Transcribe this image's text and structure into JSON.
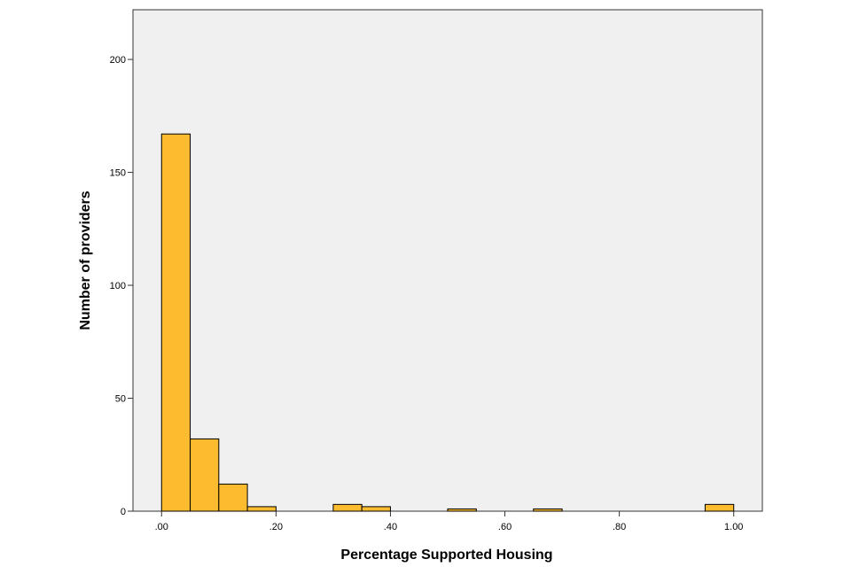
{
  "chart_data": {
    "type": "bar",
    "subtype": "histogram",
    "xlabel": "Percentage Supported Housing",
    "ylabel": "Number of providers",
    "xlim": [
      -0.05,
      1.05
    ],
    "ylim": [
      0,
      222
    ],
    "x_ticks": [
      {
        "value": 0.0,
        "label": ".00"
      },
      {
        "value": 0.2,
        "label": ".20"
      },
      {
        "value": 0.4,
        "label": ".40"
      },
      {
        "value": 0.6,
        "label": ".60"
      },
      {
        "value": 0.8,
        "label": ".80"
      },
      {
        "value": 1.0,
        "label": "1.00"
      }
    ],
    "y_ticks": [
      {
        "value": 0,
        "label": "0"
      },
      {
        "value": 50,
        "label": "50"
      },
      {
        "value": 100,
        "label": "100"
      },
      {
        "value": 150,
        "label": "150"
      },
      {
        "value": 200,
        "label": "200"
      }
    ],
    "bins": [
      {
        "start": 0.0,
        "end": 0.05,
        "count": 167
      },
      {
        "start": 0.05,
        "end": 0.1,
        "count": 32
      },
      {
        "start": 0.1,
        "end": 0.15,
        "count": 12
      },
      {
        "start": 0.15,
        "end": 0.2,
        "count": 2
      },
      {
        "start": 0.3,
        "end": 0.35,
        "count": 3
      },
      {
        "start": 0.35,
        "end": 0.4,
        "count": 2
      },
      {
        "start": 0.5,
        "end": 0.55,
        "count": 1
      },
      {
        "start": 0.65,
        "end": 0.7,
        "count": 1
      },
      {
        "start": 0.95,
        "end": 1.0,
        "count": 3
      }
    ],
    "grid": false,
    "colors": {
      "bar_fill": "#FDBB30",
      "bar_stroke": "#000000",
      "plot_background": "#F0F0F0"
    }
  }
}
